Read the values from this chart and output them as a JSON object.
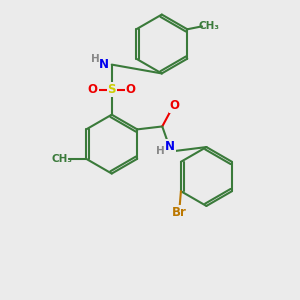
{
  "bg_color": "#ebebeb",
  "bond_color": "#3a7a3a",
  "bond_width": 1.5,
  "atom_colors": {
    "N": "#0000ee",
    "H": "#888888",
    "S": "#cccc00",
    "O": "#ee0000",
    "Br": "#bb7700",
    "C": "#3a7a3a"
  },
  "font_size": 8.5,
  "small_font": 7.5
}
